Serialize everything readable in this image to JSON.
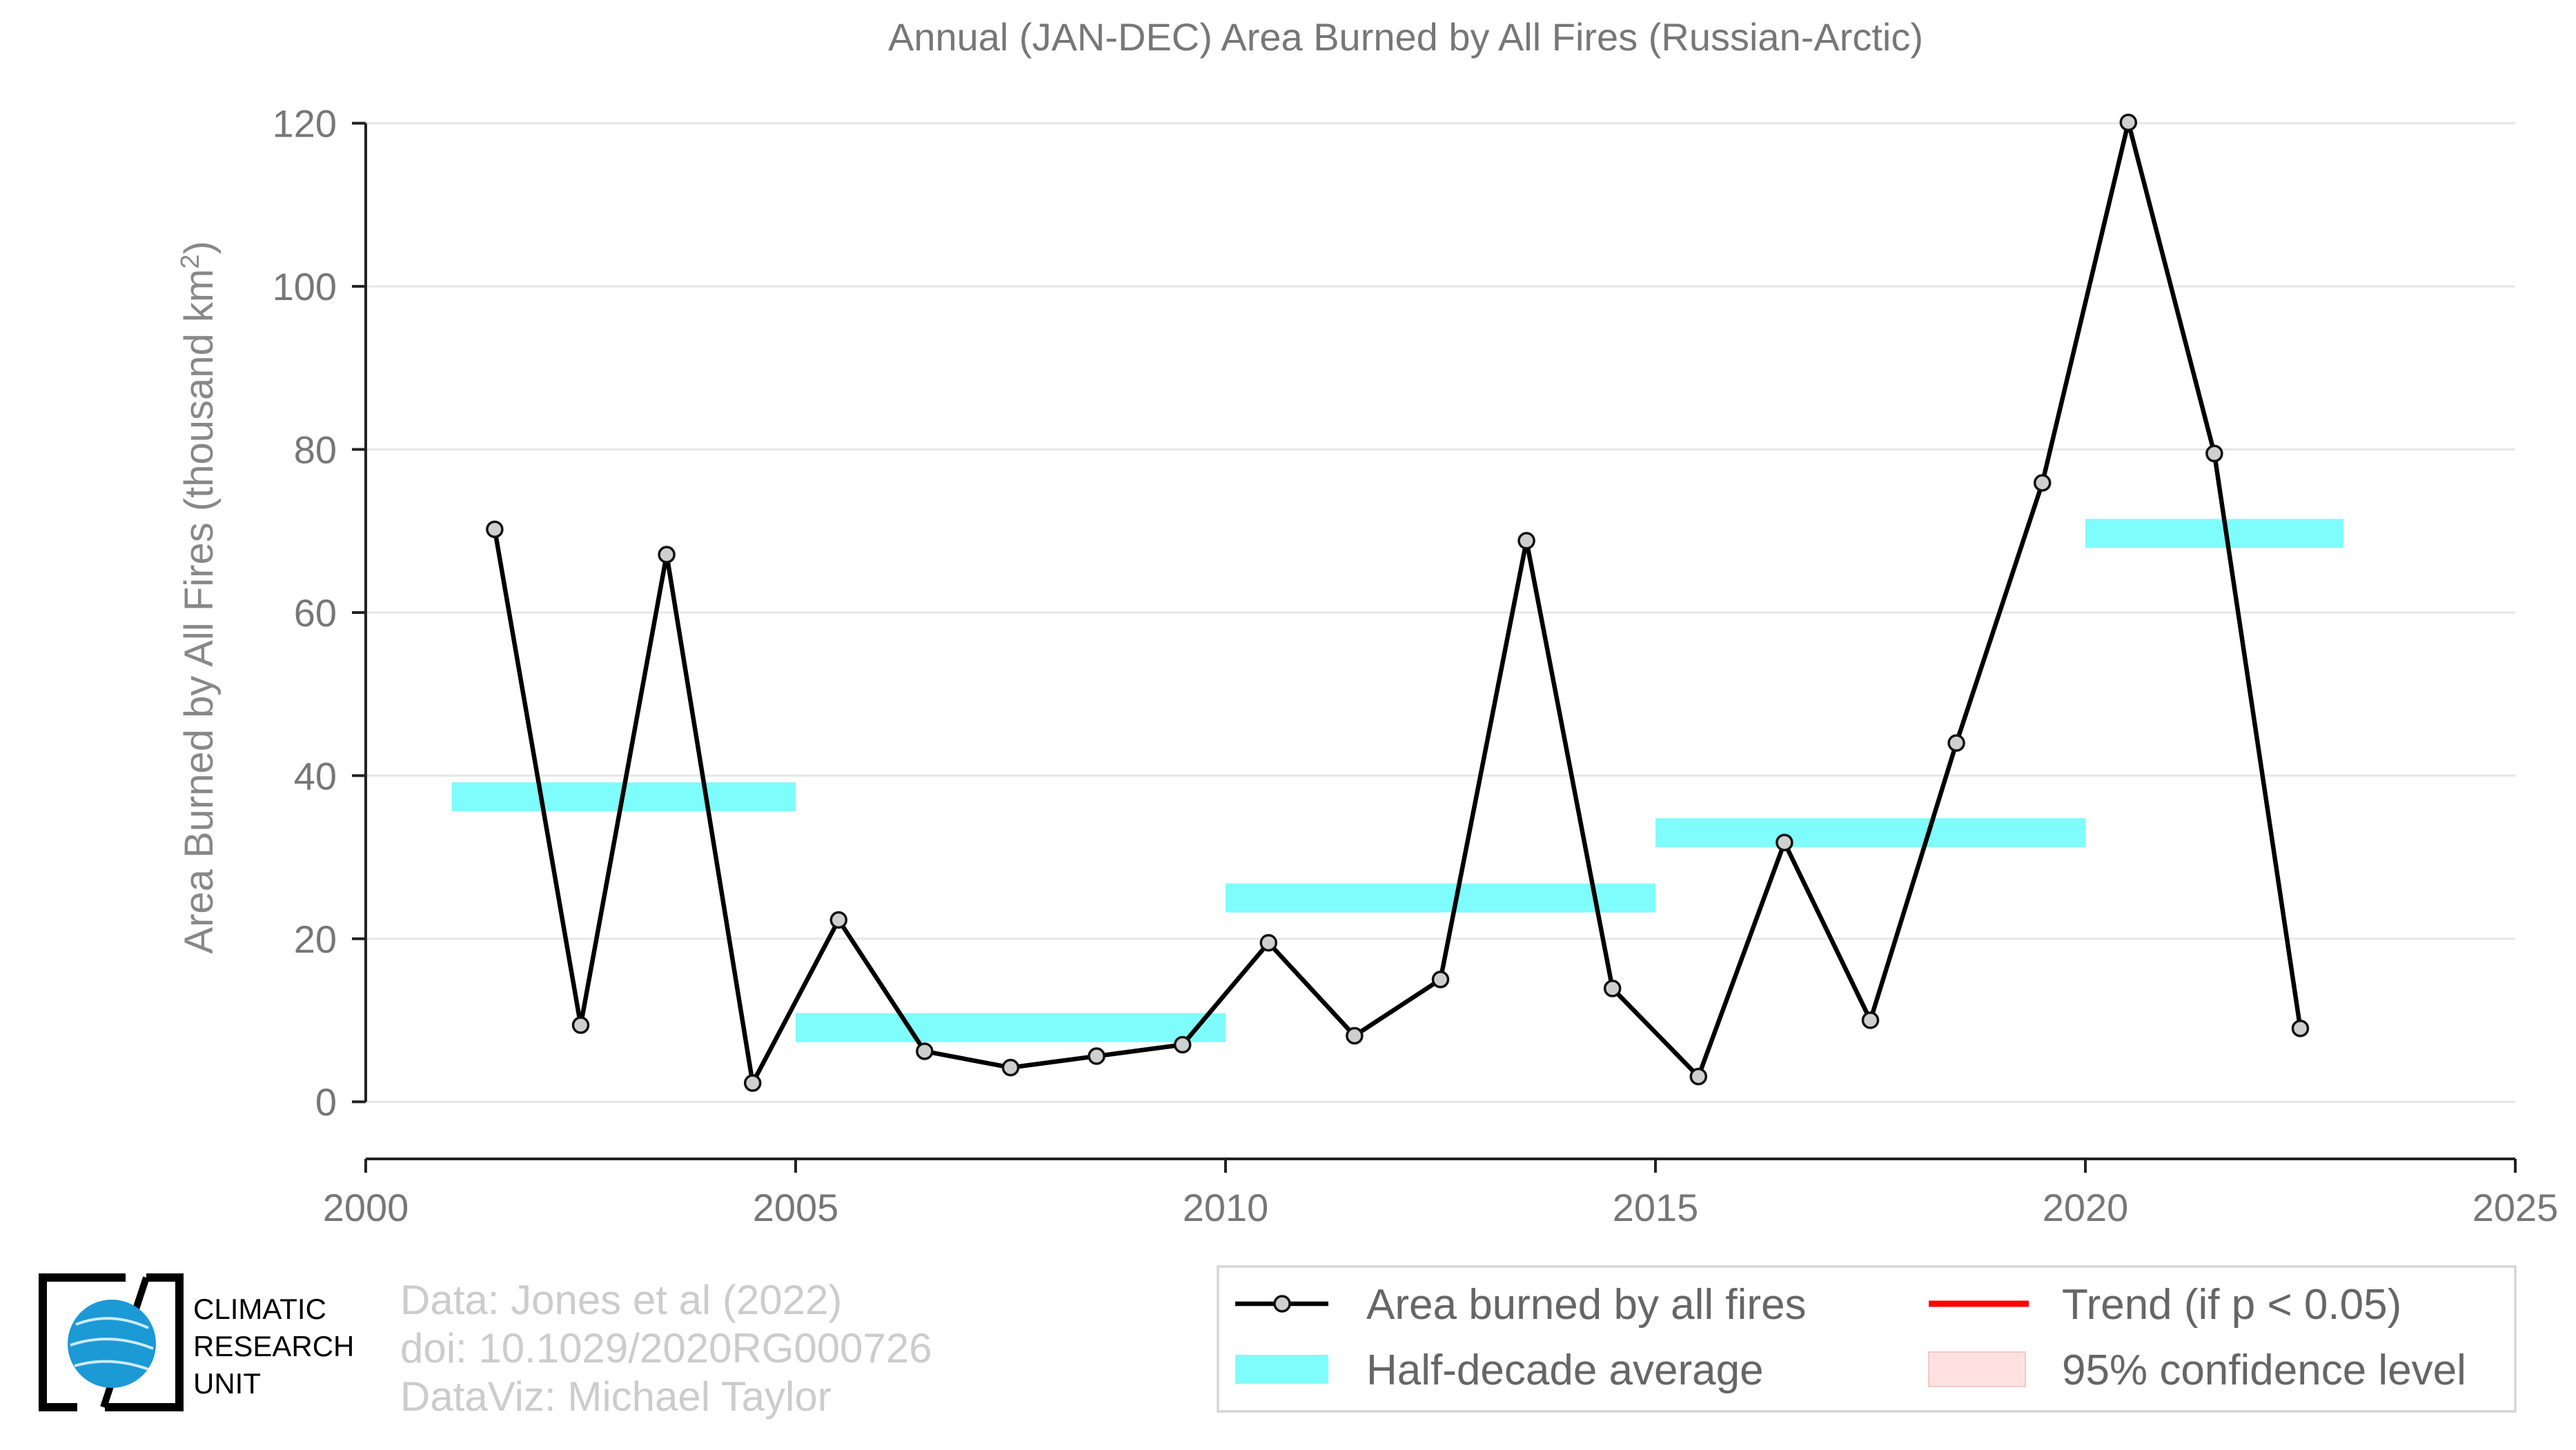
{
  "chart_data": {
    "type": "line",
    "title": "Annual (JAN-DEC) Area Burned by All Fires (Russian-Arctic)",
    "ylabel": "Area Burned by All Fires (thousand km",
    "ylabel_superscript": "2",
    "ylabel_suffix": ")",
    "xlim": [
      2000,
      2025
    ],
    "ylim": [
      -7,
      122
    ],
    "x_ticks": [
      2000,
      2005,
      2010,
      2015,
      2020,
      2025
    ],
    "y_ticks": [
      0,
      20,
      40,
      60,
      80,
      100,
      120
    ],
    "grid": "horizontal",
    "legend_position": "bottom-right, below plot",
    "series": [
      {
        "name": "Area burned by all fires",
        "color": "#000000",
        "x": [
          2001.5,
          2002.5,
          2003.5,
          2004.5,
          2005.5,
          2006.5,
          2007.5,
          2008.5,
          2009.5,
          2010.5,
          2011.5,
          2012.5,
          2013.5,
          2014.5,
          2015.5,
          2016.5,
          2017.5,
          2018.5,
          2019.5,
          2020.5,
          2021.5,
          2022.5
        ],
        "y": [
          70.2,
          9.4,
          67.1,
          2.3,
          22.3,
          6.2,
          4.2,
          5.6,
          7.0,
          19.5,
          8.1,
          15.0,
          68.8,
          13.9,
          3.1,
          31.8,
          10.0,
          44.0,
          75.9,
          120.1,
          79.5,
          9.0
        ]
      },
      {
        "name": "Half-decade average",
        "color": "#7ffcfc",
        "segments": [
          {
            "x_start": 2001,
            "x_end": 2005,
            "y": 37.4
          },
          {
            "x_start": 2005,
            "x_end": 2010,
            "y": 9.1
          },
          {
            "x_start": 2010,
            "x_end": 2015,
            "y": 25.0
          },
          {
            "x_start": 2015,
            "x_end": 2020,
            "y": 33.0
          },
          {
            "x_start": 2020,
            "x_end": 2023,
            "y": 69.7
          }
        ]
      }
    ],
    "legend": [
      {
        "label": "Area burned by all fires",
        "kind": "line-marker",
        "color": "#000000"
      },
      {
        "label": "Trend (if p < 0.05)",
        "kind": "line",
        "color": "#ff0000"
      },
      {
        "label": "Half-decade average",
        "kind": "band",
        "color": "#7ffcfc"
      },
      {
        "label": "95% confidence level",
        "kind": "patch",
        "color": "#ffe0e0"
      }
    ]
  },
  "credits": {
    "lines": [
      "Data: Jones et al (2022)",
      "doi: 10.1029/2020RG000726",
      "DataViz: Michael Taylor"
    ]
  },
  "logo": {
    "lines": [
      "CLIMATIC",
      "RESEARCH",
      "UNIT"
    ],
    "globe_color": "#1b9ad6"
  }
}
